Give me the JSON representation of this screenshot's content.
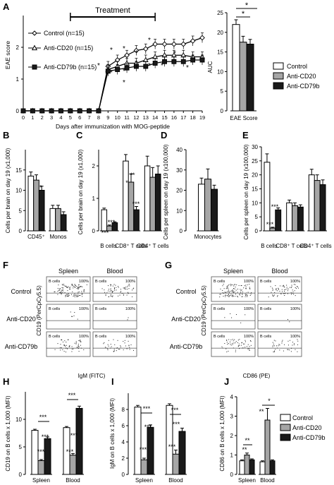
{
  "figure": {
    "panel_letters": [
      "A",
      "B",
      "C",
      "D",
      "E",
      "F",
      "G",
      "H",
      "I",
      "J"
    ],
    "colors": {
      "control": "#ffffff",
      "anti_cd20": "#a6a6a6",
      "anti_cd79b": "#1a1a1a",
      "axis": "#000000"
    }
  },
  "chart_data": [
    {
      "panel": "A",
      "type": "line",
      "treatment_label": "Treatment",
      "xlabel": "Days after immunization with MOG-peptide",
      "ylabel": "EAE score",
      "xlim": [
        0,
        19
      ],
      "ylim": [
        0,
        3
      ],
      "x_ticks": [
        "0",
        "1",
        "2",
        "3",
        "4",
        "5",
        "6",
        "7",
        "8",
        "9",
        "10",
        "11",
        "12",
        "13",
        "14",
        "15",
        "16",
        "17",
        "18",
        "19"
      ],
      "y_ticks": [
        "0",
        "1",
        "2"
      ],
      "x": [
        0,
        1,
        2,
        3,
        4,
        5,
        6,
        7,
        8,
        9,
        10,
        11,
        12,
        13,
        14,
        15,
        16,
        17,
        18,
        19
      ],
      "series": [
        {
          "name": "Control (n=15)",
          "marker": "diamond",
          "values": [
            0,
            0,
            0,
            0,
            0,
            0,
            0,
            0,
            0,
            1.4,
            1.6,
            1.75,
            1.9,
            1.95,
            2.1,
            2.1,
            2.1,
            2.1,
            2.2,
            2.3
          ]
        },
        {
          "name": "Anti-CD20 (n=15)",
          "marker": "triangle",
          "values": [
            0,
            0,
            0,
            0,
            0,
            0,
            0,
            0,
            0,
            1.3,
            1.4,
            1.5,
            1.5,
            1.6,
            1.7,
            1.75,
            1.75,
            1.75,
            1.7,
            1.7
          ]
        },
        {
          "name": "Anti-CD79b (n=15)",
          "marker": "square",
          "values": [
            0,
            0,
            0,
            0,
            0,
            0,
            0,
            0,
            0,
            1.25,
            1.3,
            1.35,
            1.4,
            1.4,
            1.5,
            1.55,
            1.55,
            1.55,
            1.6,
            1.6
          ]
        }
      ],
      "significance": [
        "*",
        "*",
        "*",
        "*",
        "*",
        "*",
        "*",
        "*",
        "*",
        "*",
        "*",
        "*",
        "*"
      ]
    },
    {
      "panel": "A-inset",
      "type": "bar",
      "ylabel": "AUC",
      "xlabel": "EAE Score",
      "ylim": [
        0,
        25
      ],
      "y_ticks": [
        "0",
        "5",
        "10",
        "15",
        "20",
        "25"
      ],
      "series": [
        {
          "name": "Control",
          "values": [
            22
          ],
          "err": [
            1.2
          ]
        },
        {
          "name": "Anti-CD20",
          "values": [
            17.5
          ],
          "err": [
            1.5
          ]
        },
        {
          "name": "Anti-CD79b",
          "values": [
            17
          ],
          "err": [
            1.2
          ]
        }
      ],
      "brackets": [
        "*",
        "*"
      ],
      "legend": [
        "Control",
        "Anti-CD20",
        "Anti-CD79b"
      ]
    },
    {
      "panel": "B",
      "type": "bar",
      "ylabel": "Cells per brain on day 19 (x1,000)",
      "ylim": [
        0,
        20
      ],
      "y_ticks": [
        "0",
        "5",
        "10",
        "15"
      ],
      "categories": [
        "CD45⁺",
        "Monos"
      ],
      "series": [
        {
          "name": "Control",
          "values": [
            13.5,
            5.5
          ],
          "err": [
            1.0,
            0.8
          ]
        },
        {
          "name": "Anti-CD20",
          "values": [
            12.5,
            5.5
          ],
          "err": [
            1.3,
            0.8
          ]
        },
        {
          "name": "Anti-CD79b",
          "values": [
            10,
            4
          ],
          "err": [
            1.0,
            0.7
          ]
        }
      ],
      "significance": [
        "*"
      ]
    },
    {
      "panel": "C",
      "type": "bar",
      "ylabel": "Cells per brain on day 19 (x1,000)",
      "ylim": [
        0,
        2.5
      ],
      "y_ticks": [
        "0",
        "1",
        "2"
      ],
      "categories": [
        "B cells",
        "CD8⁺ T cells",
        "CD4⁺ T cells"
      ],
      "series": [
        {
          "name": "Control",
          "values": [
            0.65,
            2.15,
            2.0
          ],
          "err": [
            0.05,
            0.2,
            0.3
          ]
        },
        {
          "name": "Anti-CD20",
          "values": [
            0.15,
            1.5,
            1.65
          ],
          "err": [
            0.03,
            0.25,
            0.3
          ]
        },
        {
          "name": "Anti-CD79b",
          "values": [
            0.25,
            0.65,
            1.75
          ],
          "err": [
            0.03,
            0.1,
            0.25
          ]
        }
      ],
      "significance": [
        "***",
        "***",
        "*",
        "**",
        "***"
      ]
    },
    {
      "panel": "D",
      "type": "bar",
      "ylabel": "Cells per spleen on day 19 (x100,000)",
      "ylim": [
        0,
        40
      ],
      "y_ticks": [
        "0",
        "10",
        "20",
        "30",
        "40"
      ],
      "categories": [
        "Monocytes"
      ],
      "series": [
        {
          "name": "Control",
          "values": [
            23
          ],
          "err": [
            3
          ]
        },
        {
          "name": "Anti-CD20",
          "values": [
            25.5
          ],
          "err": [
            5
          ]
        },
        {
          "name": "Anti-CD79b",
          "values": [
            20.5
          ],
          "err": [
            2
          ]
        }
      ]
    },
    {
      "panel": "E",
      "type": "bar",
      "ylabel": "Cells per spleen on day 19 (x100,000)",
      "ylim": [
        0,
        30
      ],
      "y_ticks": [
        "0",
        "5",
        "10",
        "15",
        "20",
        "25",
        "30"
      ],
      "categories": [
        "B cells",
        "CD8⁺ T cells",
        "CD4⁺ T cells"
      ],
      "series": [
        {
          "name": "Control",
          "values": [
            24.5,
            10,
            20
          ],
          "err": [
            3,
            1,
            2
          ]
        },
        {
          "name": "Anti-CD20",
          "values": [
            1,
            9,
            18
          ],
          "err": [
            0.3,
            1,
            2
          ]
        },
        {
          "name": "Anti-CD79b",
          "values": [
            7.5,
            8.5,
            16.5
          ],
          "err": [
            0.7,
            0.8,
            1.7
          ]
        }
      ],
      "significance": [
        "***",
        "***"
      ]
    },
    {
      "panel": "H",
      "type": "bar",
      "ylabel": "CD19 on B cells x 1,000 (MFI)",
      "ylim": [
        0,
        15
      ],
      "y_ticks": [
        "0",
        "5",
        "10"
      ],
      "categories": [
        "Spleen",
        "Blood"
      ],
      "series": [
        {
          "name": "Control",
          "values": [
            8,
            8.5
          ],
          "err": [
            0.2,
            0.2
          ]
        },
        {
          "name": "Anti-CD20",
          "values": [
            2.5,
            3.5
          ],
          "err": [
            0.2,
            0.3
          ]
        },
        {
          "name": "Anti-CD79b",
          "values": [
            6.5,
            12
          ],
          "err": [
            0.3,
            0.4
          ]
        }
      ],
      "significance": [
        "***",
        "***",
        "***",
        "***",
        "***",
        "***"
      ]
    },
    {
      "panel": "I",
      "type": "bar",
      "ylabel": "IgM on B cells x 1,000 (MFI)",
      "ylim": [
        0,
        10
      ],
      "y_ticks": [
        "0",
        "2",
        "4",
        "6",
        "8"
      ],
      "categories": [
        "Spleen",
        "Blood"
      ],
      "series": [
        {
          "name": "Control",
          "values": [
            8.3,
            8.5
          ],
          "err": [
            0.2,
            0.2
          ]
        },
        {
          "name": "Anti-CD20",
          "values": [
            1.8,
            2.5
          ],
          "err": [
            0.2,
            0.5
          ]
        },
        {
          "name": "Anti-CD79b",
          "values": [
            5.8,
            5.3
          ],
          "err": [
            0.3,
            0.4
          ]
        }
      ],
      "significance": [
        "***",
        "***",
        "***",
        "***",
        "***",
        "***"
      ]
    },
    {
      "panel": "J",
      "type": "bar",
      "ylabel": "CD86 on B cells x 1,000 (MFI)",
      "ylim": [
        0,
        4
      ],
      "y_ticks": [
        "0",
        "1",
        "2",
        "3",
        "4"
      ],
      "categories": [
        "Spleen",
        "Blood"
      ],
      "series": [
        {
          "name": "Control",
          "values": [
            0.7,
            0.65
          ],
          "err": [
            0.05,
            0.05
          ]
        },
        {
          "name": "Anti-CD20",
          "values": [
            1.0,
            2.8
          ],
          "err": [
            0.1,
            0.6
          ]
        },
        {
          "name": "Anti-CD79b",
          "values": [
            0.75,
            0.7
          ],
          "err": [
            0.05,
            0.05
          ]
        }
      ],
      "significance": [
        "**",
        "**",
        "**",
        "*"
      ],
      "legend": [
        "Control",
        "Anti-CD20",
        "Anti-CD79b"
      ]
    }
  ],
  "flow_panels": [
    {
      "panel": "F",
      "columns": [
        "Spleen",
        "Blood"
      ],
      "rows": [
        "Control",
        "Anti-CD20",
        "Anti-CD79b"
      ],
      "ylabel": "CD19 (PerCpCy5.5)",
      "xlabel": "IgM (FITC)",
      "gate_label": "B cells",
      "gate_values": [
        [
          "100%",
          "100%"
        ],
        [
          "100%",
          "100%"
        ],
        [
          "100%",
          "100%"
        ]
      ],
      "density": [
        [
          1.0,
          0.6
        ],
        [
          0.05,
          0.02
        ],
        [
          0.5,
          0.35
        ]
      ]
    },
    {
      "panel": "G",
      "columns": [
        "Spleen",
        "Blood"
      ],
      "rows": [
        "Control",
        "Anti-CD20",
        "Anti-CD79b"
      ],
      "ylabel": "CD19 (PerCpCy5.5)",
      "xlabel": "CD86 (PE)",
      "gate_label": "B cells",
      "gate_values": [
        [
          "100%",
          "100%"
        ],
        [
          "100%",
          "100%"
        ],
        [
          "100%",
          "100%"
        ]
      ],
      "density": [
        [
          1.0,
          0.6
        ],
        [
          0.05,
          0.02
        ],
        [
          0.5,
          0.35
        ]
      ]
    }
  ]
}
